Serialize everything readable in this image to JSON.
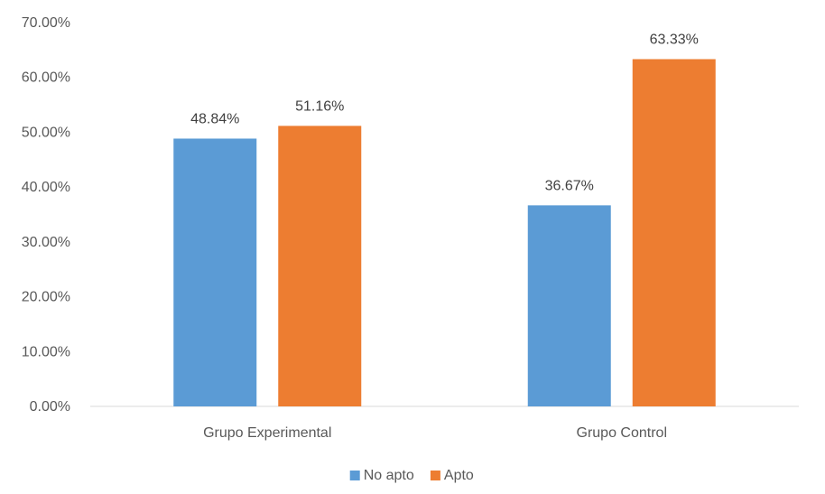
{
  "chart_data": {
    "type": "bar",
    "categories": [
      "Grupo Experimental",
      "Grupo Control"
    ],
    "series": [
      {
        "name": "No apto",
        "color": "#5B9BD5",
        "values": [
          48.84,
          36.67
        ],
        "labels": [
          "48.84%",
          "36.67%"
        ]
      },
      {
        "name": "Apto",
        "color": "#ED7D31",
        "values": [
          51.16,
          63.33
        ],
        "labels": [
          "51.16%",
          "63.33%"
        ]
      }
    ],
    "ylim": [
      0,
      70
    ],
    "yticks": [
      0,
      10,
      20,
      30,
      40,
      50,
      60,
      70
    ],
    "ytick_labels": [
      "0.00%",
      "10.00%",
      "20.00%",
      "30.00%",
      "40.00%",
      "50.00%",
      "60.00%",
      "70.00%"
    ],
    "grid": false,
    "legend_position": "bottom",
    "title": "",
    "xlabel": "",
    "ylabel": ""
  }
}
